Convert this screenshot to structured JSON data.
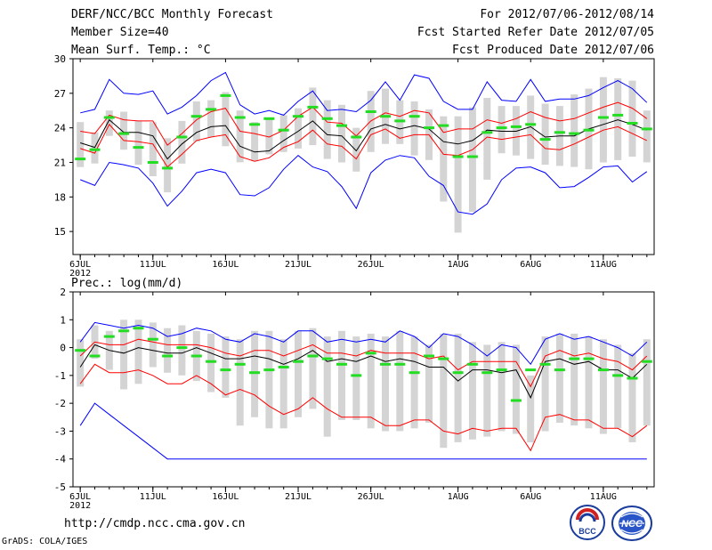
{
  "header": {
    "title": "DERF/NCC/BCC Monthly Forecast",
    "member": "Member Size=40",
    "period": "For 2012/07/06-2012/08/14",
    "start": "Fcst Started Refer Date 2012/07/05",
    "produced": "Fcst Produced Date 2012/07/06"
  },
  "footer": {
    "url": "http://cmdp.ncc.cma.gov.cn",
    "credit": "GrADS: COLA/IGES"
  },
  "logos": {
    "bcc": "BCC",
    "ncc": "NCC"
  },
  "colors": {
    "max_min": "#0000ff",
    "quartile": "#ff0000",
    "median": "#000000",
    "mean": "#22dd22",
    "spread": "#d4d4d4"
  },
  "chart_data": [
    {
      "type": "box",
      "title": "Mean Surf. Temp.: °C",
      "x_tick_labels": [
        "6JUL",
        "11JUL",
        "16JUL",
        "21JUL",
        "26JUL",
        "1AUG",
        "6AUG",
        "11AUG"
      ],
      "x_tick_days": [
        1,
        6,
        11,
        16,
        21,
        27,
        32,
        37
      ],
      "year_label": "2012",
      "ylim": [
        13,
        30
      ],
      "yticks": [
        15,
        18,
        21,
        24,
        27,
        30
      ],
      "days": 40,
      "max": [
        25.3,
        25.6,
        28.2,
        27.0,
        26.9,
        27.2,
        25.2,
        25.8,
        26.8,
        28.1,
        28.8,
        26.0,
        25.2,
        25.5,
        25.1,
        26.3,
        27.2,
        25.5,
        25.6,
        25.4,
        26.4,
        28.0,
        26.4,
        28.6,
        28.3,
        26.3,
        25.6,
        25.6,
        28.0,
        26.4,
        26.3,
        28.2,
        26.3,
        26.5,
        26.5,
        26.8,
        27.5,
        28.1,
        27.4,
        26.2
      ],
      "upper_q": [
        23.7,
        23.5,
        25.1,
        24.7,
        24.6,
        24.6,
        22.5,
        23.5,
        24.7,
        25.4,
        25.7,
        23.7,
        23.5,
        23.2,
        23.8,
        25.0,
        25.8,
        24.5,
        24.4,
        23.3,
        24.6,
        25.3,
        25.0,
        25.5,
        25.3,
        23.6,
        23.9,
        23.9,
        24.7,
        24.4,
        24.8,
        25.4,
        24.9,
        24.6,
        24.8,
        25.3,
        25.8,
        26.2,
        25.7,
        24.8
      ],
      "median": [
        22.7,
        22.3,
        24.7,
        23.6,
        23.6,
        23.3,
        21.3,
        22.6,
        23.6,
        24.1,
        24.2,
        22.4,
        21.9,
        22.0,
        22.9,
        23.7,
        24.6,
        23.4,
        23.3,
        22.0,
        23.9,
        24.3,
        23.9,
        24.2,
        23.9,
        22.8,
        22.6,
        22.9,
        23.8,
        23.7,
        23.7,
        24.1,
        23.2,
        23.3,
        23.3,
        23.9,
        24.3,
        24.7,
        24.3,
        23.8
      ],
      "lower_q": [
        22.2,
        21.8,
        24.3,
        22.9,
        22.8,
        22.6,
        20.6,
        21.7,
        22.9,
        23.2,
        23.4,
        21.5,
        21.1,
        21.4,
        22.3,
        22.8,
        23.8,
        22.6,
        22.4,
        21.3,
        23.4,
        23.9,
        23.1,
        23.4,
        23.4,
        21.7,
        21.6,
        22.1,
        23.2,
        23.0,
        23.2,
        23.4,
        22.2,
        22.1,
        22.6,
        23.2,
        23.8,
        24.1,
        23.5,
        22.9
      ],
      "min": [
        19.5,
        19.0,
        21.0,
        20.8,
        20.5,
        19.2,
        17.2,
        18.5,
        20.1,
        20.4,
        20.1,
        18.2,
        18.1,
        18.8,
        20.4,
        21.6,
        20.6,
        20.2,
        18.9,
        17.0,
        20.1,
        21.2,
        21.6,
        21.4,
        19.8,
        19.0,
        16.7,
        16.5,
        17.4,
        19.5,
        20.5,
        20.6,
        20.1,
        18.8,
        18.9,
        19.7,
        20.6,
        20.7,
        19.3,
        20.2
      ],
      "mean": [
        21.3,
        22.1,
        24.9,
        23.5,
        22.3,
        21.0,
        20.5,
        23.2,
        25.0,
        25.6,
        26.8,
        24.9,
        24.3,
        24.8,
        23.8,
        25.0,
        25.8,
        24.8,
        24.2,
        23.2,
        25.4,
        25.0,
        24.6,
        25.0,
        24.0,
        24.2,
        21.5,
        21.5,
        23.6,
        24.0,
        24.1,
        24.3,
        23.0,
        23.6,
        23.5,
        23.8,
        24.9,
        25.1,
        24.4,
        23.9
      ],
      "spread_top": [
        24.5,
        23.6,
        25.5,
        25.4,
        24.6,
        24.5,
        23.1,
        24.6,
        26.3,
        26.4,
        27.1,
        25.5,
        24.5,
        24.8,
        25.1,
        25.7,
        27.5,
        26.4,
        26.0,
        24.0,
        27.2,
        27.4,
        26.4,
        26.3,
        25.6,
        25.0,
        25.0,
        25.8,
        26.6,
        25.9,
        25.9,
        26.8,
        26.1,
        25.9,
        26.9,
        27.4,
        28.4,
        28.3,
        28.1,
        25.5
      ],
      "spread_bot": [
        20.6,
        20.9,
        23.3,
        22.1,
        20.8,
        19.8,
        18.4,
        20.9,
        22.8,
        23.2,
        22.4,
        21.0,
        21.1,
        21.7,
        21.9,
        22.2,
        22.5,
        21.3,
        21.0,
        20.2,
        21.9,
        22.6,
        22.6,
        21.6,
        21.2,
        17.6,
        14.9,
        16.7,
        19.5,
        21.8,
        21.6,
        21.3,
        20.8,
        20.7,
        20.6,
        20.4,
        21.0,
        21.2,
        21.5,
        21.0
      ]
    },
    {
      "type": "box",
      "title": "Prec.: log(mm/d)",
      "x_tick_labels": [
        "6JUL",
        "11JUL",
        "16JUL",
        "21JUL",
        "26JUL",
        "1AUG",
        "6AUG",
        "11AUG"
      ],
      "x_tick_days": [
        1,
        6,
        11,
        16,
        21,
        27,
        32,
        37
      ],
      "year_label": "2012",
      "ylim": [
        -5,
        2
      ],
      "yticks": [
        -5,
        -4,
        -3,
        -2,
        -1,
        0,
        1,
        2
      ],
      "days": 40,
      "max": [
        0.2,
        0.9,
        0.8,
        0.7,
        0.8,
        0.7,
        0.4,
        0.5,
        0.7,
        0.6,
        0.3,
        0.2,
        0.5,
        0.4,
        0.2,
        0.6,
        0.6,
        0.2,
        0.3,
        0.2,
        0.3,
        0.2,
        0.6,
        0.4,
        0.0,
        0.5,
        0.4,
        0.1,
        -0.3,
        0.1,
        0.0,
        -0.6,
        0.3,
        0.5,
        0.3,
        0.4,
        0.2,
        0.0,
        -0.3,
        0.2
      ],
      "upper_q": [
        -0.3,
        0.2,
        0.1,
        0.1,
        0.3,
        0.2,
        0.1,
        0.1,
        0.1,
        0.0,
        -0.2,
        -0.3,
        -0.1,
        -0.1,
        -0.3,
        -0.1,
        0.1,
        -0.2,
        -0.2,
        -0.3,
        -0.1,
        -0.2,
        -0.2,
        -0.2,
        -0.4,
        -0.3,
        -0.8,
        -0.5,
        -0.5,
        -0.5,
        -0.5,
        -1.4,
        -0.3,
        -0.1,
        -0.3,
        -0.2,
        -0.4,
        -0.5,
        -0.8,
        -0.3
      ],
      "median": [
        -0.7,
        0.1,
        -0.1,
        -0.2,
        0.0,
        -0.1,
        -0.2,
        -0.2,
        0.0,
        -0.2,
        -0.4,
        -0.4,
        -0.3,
        -0.4,
        -0.6,
        -0.4,
        -0.1,
        -0.5,
        -0.4,
        -0.5,
        -0.3,
        -0.5,
        -0.4,
        -0.5,
        -0.7,
        -0.7,
        -1.2,
        -0.8,
        -0.8,
        -0.9,
        -0.8,
        -1.8,
        -0.5,
        -0.4,
        -0.6,
        -0.5,
        -0.8,
        -0.8,
        -1.1,
        -0.6
      ],
      "lower_q": [
        -1.3,
        -0.6,
        -0.9,
        -0.9,
        -0.8,
        -1.0,
        -1.3,
        -1.3,
        -1.0,
        -1.3,
        -1.7,
        -1.5,
        -1.7,
        -2.1,
        -2.4,
        -2.2,
        -1.8,
        -2.2,
        -2.5,
        -2.5,
        -2.5,
        -2.8,
        -2.8,
        -2.6,
        -2.6,
        -3.0,
        -3.1,
        -2.9,
        -3.0,
        -2.9,
        -2.9,
        -3.7,
        -2.5,
        -2.4,
        -2.6,
        -2.6,
        -2.9,
        -2.9,
        -3.2,
        -2.8
      ],
      "min": [
        -2.8,
        -2.0,
        -2.4,
        -2.8,
        -3.2,
        -3.6,
        -4.0,
        -4.0,
        -4.0,
        -4.0,
        -4.0,
        -4.0,
        -4.0,
        -4.0,
        -4.0,
        -4.0,
        -4.0,
        -4.0,
        -4.0,
        -4.0,
        -4.0,
        -4.0,
        -4.0,
        -4.0,
        -4.0,
        -4.0,
        -4.0,
        -4.0,
        -4.0,
        -4.0,
        -4.0,
        -4.0,
        -4.0,
        -4.0,
        -4.0,
        -4.0,
        -4.0,
        -4.0,
        -4.0,
        -4.0
      ],
      "mean": [
        -0.1,
        -0.3,
        0.4,
        0.6,
        0.7,
        0.3,
        -0.3,
        0.0,
        -0.3,
        -0.5,
        -0.8,
        -0.6,
        -0.9,
        -0.8,
        -0.7,
        -0.5,
        -0.3,
        -0.4,
        -0.6,
        -1.0,
        -0.2,
        -0.6,
        -0.6,
        -0.9,
        -0.3,
        -0.4,
        -0.9,
        -0.6,
        -0.9,
        -0.8,
        -1.9,
        -0.8,
        -0.6,
        -0.8,
        -0.4,
        -0.4,
        -0.8,
        -1.0,
        -1.1,
        -0.5
      ],
      "spread_top": [
        0.3,
        0.8,
        0.6,
        1.0,
        1.0,
        0.9,
        0.7,
        0.8,
        0.6,
        0.5,
        0.4,
        0.3,
        0.6,
        0.6,
        0.3,
        0.6,
        0.7,
        0.4,
        0.6,
        0.4,
        0.5,
        0.4,
        0.6,
        0.4,
        0.1,
        0.5,
        0.5,
        0.2,
        0.1,
        0.2,
        0.1,
        -1.0,
        0.4,
        0.5,
        0.5,
        0.4,
        0.3,
        0.1,
        -0.2,
        0.3
      ],
      "spread_bot": [
        -1.4,
        -0.4,
        -0.8,
        -1.5,
        -1.3,
        -0.7,
        -0.9,
        -1.0,
        -1.2,
        -1.6,
        -1.8,
        -2.8,
        -2.5,
        -2.9,
        -2.9,
        -2.5,
        -2.2,
        -3.2,
        -2.6,
        -2.6,
        -2.9,
        -3.0,
        -3.0,
        -2.9,
        -2.7,
        -3.6,
        -3.4,
        -3.3,
        -3.2,
        -3.0,
        -3.1,
        -3.4,
        -3.0,
        -2.7,
        -2.8,
        -2.9,
        -3.1,
        -2.9,
        -3.4,
        -2.8
      ]
    }
  ]
}
